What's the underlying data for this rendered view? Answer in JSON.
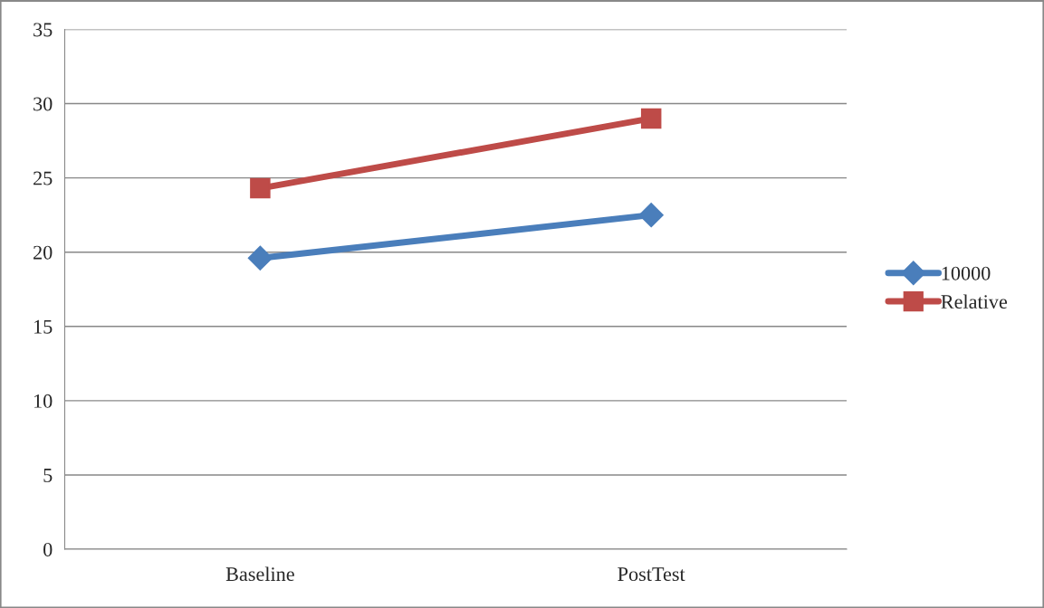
{
  "chart_data": {
    "type": "line",
    "categories": [
      "Baseline",
      "PostTest"
    ],
    "series": [
      {
        "name": "10000",
        "color": "#4a7ebb",
        "marker": "diamond",
        "values": [
          19.6,
          22.5
        ]
      },
      {
        "name": "Relative",
        "color": "#be4b48",
        "marker": "square",
        "values": [
          24.3,
          29.0
        ]
      }
    ],
    "ylim": [
      0,
      35
    ],
    "yticks": [
      0,
      5,
      10,
      15,
      20,
      25,
      30,
      35
    ],
    "grid": "y",
    "legend": "right",
    "line_style": "solid"
  }
}
